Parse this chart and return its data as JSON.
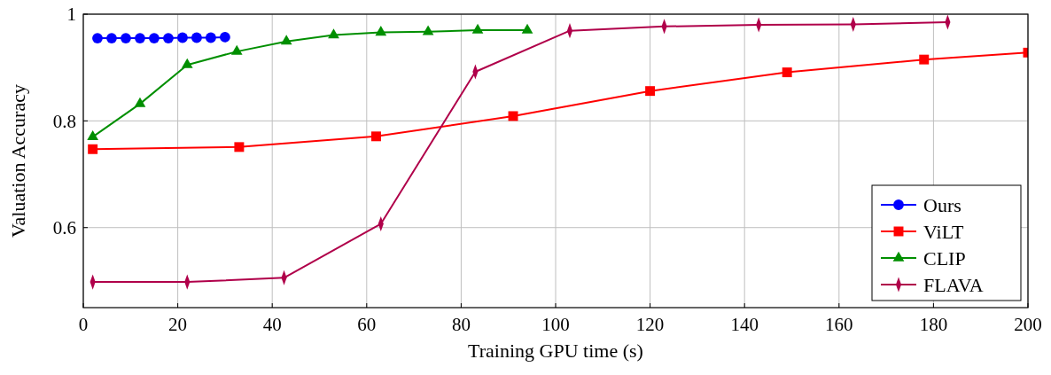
{
  "chart_data": {
    "type": "line",
    "xlabel": "Training GPU time (s)",
    "ylabel": "Valuation Accuracy",
    "xlim": [
      0,
      200
    ],
    "ylim": [
      0.45,
      1
    ],
    "xticks": [
      0,
      20,
      40,
      60,
      80,
      100,
      120,
      140,
      160,
      180,
      200
    ],
    "yticks": [
      0.6,
      0.8,
      1
    ],
    "grid": true,
    "legend": "bottom right",
    "line_style": "solid",
    "series": [
      {
        "name": "Ours",
        "color": "#0000ff",
        "marker": "circle",
        "x": [
          3,
          6,
          9,
          12,
          15,
          18,
          21,
          24,
          27,
          30
        ],
        "values": [
          0.955,
          0.955,
          0.955,
          0.955,
          0.955,
          0.955,
          0.956,
          0.956,
          0.956,
          0.957
        ]
      },
      {
        "name": "ViLT",
        "color": "#ff0000",
        "marker": "square",
        "x": [
          2,
          33,
          62,
          91,
          120,
          149,
          178,
          200
        ],
        "values": [
          0.747,
          0.751,
          0.771,
          0.809,
          0.856,
          0.891,
          0.915,
          0.928
        ]
      },
      {
        "name": "CLIP",
        "color": "#008f00",
        "marker": "triangle",
        "x": [
          2,
          12,
          22,
          32.5,
          43,
          53,
          63,
          73,
          83.5,
          94
        ],
        "values": [
          0.77,
          0.832,
          0.905,
          0.93,
          0.949,
          0.961,
          0.966,
          0.967,
          0.97,
          0.97
        ]
      },
      {
        "name": "FLAVA",
        "color": "#b0004a",
        "marker": "diamond",
        "x": [
          2,
          22,
          42.5,
          63,
          83,
          103,
          123,
          143,
          163,
          183
        ],
        "values": [
          0.498,
          0.498,
          0.506,
          0.607,
          0.892,
          0.969,
          0.977,
          0.98,
          0.981,
          0.985
        ]
      }
    ]
  }
}
